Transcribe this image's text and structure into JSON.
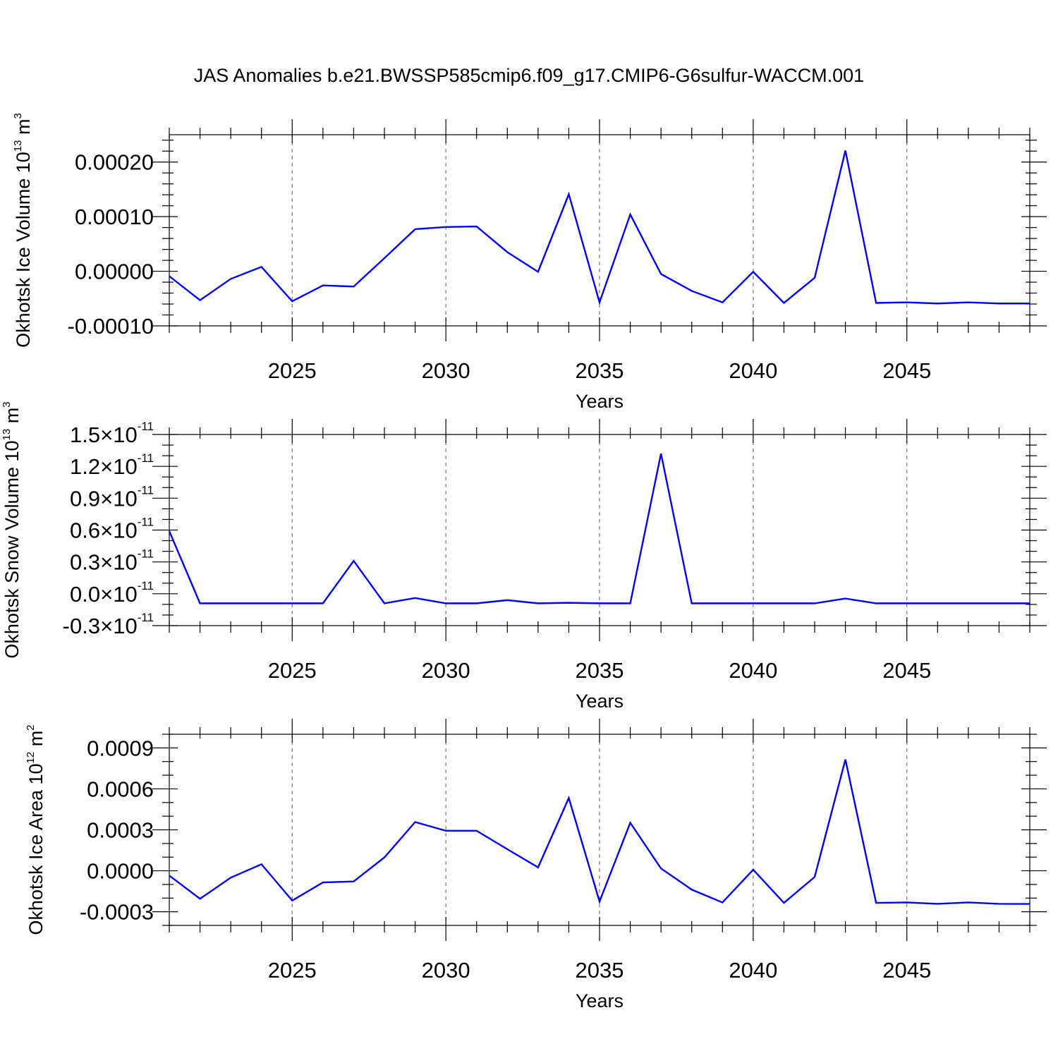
{
  "title": "JAS Anomalies b.e21.BWSSP585cmip6.f09_g17.CMIP6-G6sulfur-WACCM.001",
  "colors": {
    "series": "#0000ff",
    "grid": "#777777"
  },
  "chart_data": [
    {
      "type": "line",
      "ylabel": {
        "text": "Okhotsk Ice Volume 10",
        "exp": "13",
        "unit": " m",
        "unit_exp": "3"
      },
      "xlabel": "Years",
      "xlim": [
        2021,
        2049
      ],
      "ylim": [
        -0.0001,
        0.00025
      ],
      "x_ticks": [
        2025,
        2030,
        2035,
        2040,
        2045
      ],
      "x_tick_labels": [
        "2025",
        "2030",
        "2035",
        "2040",
        "2045"
      ],
      "y_ticks": [
        -0.0001,
        0.0,
        0.0001,
        0.0002
      ],
      "y_tick_labels": [
        {
          "main": "-0.00010"
        },
        {
          "main": "0.00000"
        },
        {
          "main": "0.00010"
        },
        {
          "main": "0.00020"
        }
      ],
      "y_minor_step": 2e-05,
      "vgrid": true,
      "series": [
        {
          "x": [
            2021,
            2022,
            2023,
            2024,
            2025,
            2026,
            2027,
            2028,
            2029,
            2030,
            2031,
            2032,
            2033,
            2034,
            2035,
            2036,
            2037,
            2038,
            2039,
            2040,
            2041,
            2042,
            2043,
            2044,
            2045,
            2046,
            2047,
            2048,
            2049
          ],
          "values": [
            -9e-06,
            -5.3e-05,
            -1.4e-05,
            8e-06,
            -5.5e-05,
            -2.6e-05,
            -2.8e-05,
            2.4e-05,
            7.7e-05,
            8.1e-05,
            8.2e-05,
            3.5e-05,
            -1e-06,
            0.000141,
            -5.7e-05,
            0.000104,
            -5e-06,
            -3.6e-05,
            -5.7e-05,
            -1e-06,
            -5.8e-05,
            -1.2e-05,
            0.000221,
            -5.8e-05,
            -5.7e-05,
            -5.9e-05,
            -5.7e-05,
            -5.9e-05,
            -5.9e-05
          ]
        }
      ]
    },
    {
      "type": "line",
      "ylabel": {
        "text": "Okhotsk Snow Volume 10",
        "exp": "13",
        "unit": " m",
        "unit_exp": "3"
      },
      "xlabel": "Years",
      "xlim": [
        2021,
        2049
      ],
      "ylim": [
        -3e-12,
        1.5e-11
      ],
      "x_ticks": [
        2025,
        2030,
        2035,
        2040,
        2045
      ],
      "x_tick_labels": [
        "2025",
        "2030",
        "2035",
        "2040",
        "2045"
      ],
      "y_ticks": [
        -3e-12,
        0.0,
        3e-12,
        6e-12,
        9e-12,
        1.2e-11,
        1.5e-11
      ],
      "y_tick_labels": [
        {
          "main": "-0.3",
          "times": "×",
          "base": "10",
          "exp": "-11"
        },
        {
          "main": "0.0",
          "times": "×",
          "base": "10",
          "exp": "-11"
        },
        {
          "main": "0.3",
          "times": "×",
          "base": "10",
          "exp": "-11"
        },
        {
          "main": "0.6",
          "times": "×",
          "base": "10",
          "exp": "-11"
        },
        {
          "main": "0.9",
          "times": "×",
          "base": "10",
          "exp": "-11"
        },
        {
          "main": "1.2",
          "times": "×",
          "base": "10",
          "exp": "-11"
        },
        {
          "main": "1.5",
          "times": "×",
          "base": "10",
          "exp": "-11"
        }
      ],
      "y_minor_step": 1e-12,
      "vgrid": true,
      "series": [
        {
          "x": [
            2021,
            2022,
            2023,
            2024,
            2025,
            2026,
            2027,
            2028,
            2029,
            2030,
            2031,
            2032,
            2033,
            2034,
            2035,
            2036,
            2037,
            2038,
            2039,
            2040,
            2041,
            2042,
            2043,
            2044,
            2045,
            2046,
            2047,
            2048,
            2049
          ],
          "values": [
            5.9e-12,
            -9e-13,
            -9e-13,
            -9e-13,
            -9e-13,
            -9e-13,
            3.1e-12,
            -9e-13,
            -4e-13,
            -9e-13,
            -9e-13,
            -6e-13,
            -9e-13,
            -8.5e-13,
            -9e-13,
            -9e-13,
            1.32e-11,
            -9e-13,
            -9e-13,
            -9e-13,
            -9e-13,
            -9e-13,
            -4.5e-13,
            -9e-13,
            -9e-13,
            -9e-13,
            -9e-13,
            -9e-13,
            -9e-13
          ]
        }
      ]
    },
    {
      "type": "line",
      "ylabel": {
        "text": "Okhotsk Ice Area 10",
        "exp": "12",
        "unit": " m",
        "unit_exp": "2"
      },
      "xlabel": "Years",
      "xlim": [
        2021,
        2049
      ],
      "ylim": [
        -0.0004,
        0.001
      ],
      "x_ticks": [
        2025,
        2030,
        2035,
        2040,
        2045
      ],
      "x_tick_labels": [
        "2025",
        "2030",
        "2035",
        "2040",
        "2045"
      ],
      "y_ticks": [
        -0.0003,
        0.0,
        0.0003,
        0.0006,
        0.0009
      ],
      "y_tick_labels": [
        {
          "main": "-0.0003"
        },
        {
          "main": "0.0000"
        },
        {
          "main": "0.0003"
        },
        {
          "main": "0.0006"
        },
        {
          "main": "0.0009"
        }
      ],
      "y_minor_step": 0.0001,
      "vgrid": true,
      "series": [
        {
          "x": [
            2021,
            2022,
            2023,
            2024,
            2025,
            2026,
            2027,
            2028,
            2029,
            2030,
            2031,
            2032,
            2033,
            2034,
            2035,
            2036,
            2037,
            2038,
            2039,
            2040,
            2041,
            2042,
            2043,
            2044,
            2045,
            2046,
            2047,
            2048,
            2049
          ],
          "values": [
            -3.5e-05,
            -0.000205,
            -5e-05,
            4.8e-05,
            -0.000218,
            -8.5e-05,
            -7.8e-05,
            9.8e-05,
            0.000357,
            0.000293,
            0.000293,
            0.000158,
            2.5e-05,
            0.000533,
            -0.000225,
            0.000352,
            1.7e-05,
            -0.000138,
            -0.000232,
            8e-06,
            -0.000235,
            -4.5e-05,
            0.000815,
            -0.000235,
            -0.000232,
            -0.000242,
            -0.000232,
            -0.000242,
            -0.000243
          ]
        }
      ]
    }
  ]
}
